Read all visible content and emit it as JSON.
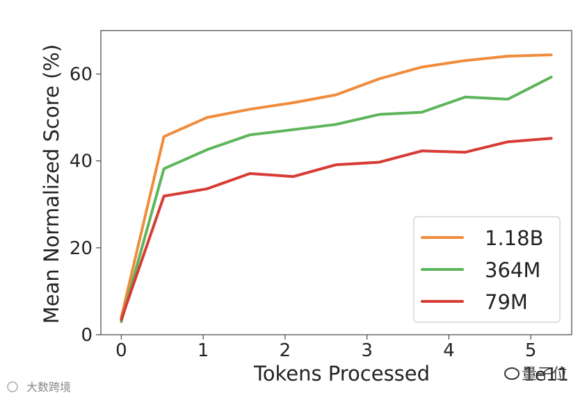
{
  "chart_data": {
    "type": "line",
    "title": "",
    "xlabel": "Tokens Processed",
    "ylabel": "Mean Normalized Score (%)",
    "x_exponent_label": "1e11",
    "xlim": [
      -0.25,
      5.5
    ],
    "ylim": [
      0,
      70
    ],
    "xticks": [
      0,
      1,
      2,
      3,
      4,
      5
    ],
    "yticks": [
      0,
      20,
      40,
      60
    ],
    "grid": false,
    "legend_position": "lower-right",
    "series": [
      {
        "name": "1.18B",
        "color": "#F08C3C",
        "x": [
          0,
          0.52,
          1.05,
          1.57,
          2.1,
          2.62,
          3.15,
          3.67,
          4.2,
          4.72,
          5.25
        ],
        "y": [
          4,
          45.6,
          50,
          51.9,
          53.4,
          55.2,
          58.9,
          61.6,
          63.1,
          64.1,
          64.4
        ]
      },
      {
        "name": "364M",
        "color": "#5DB55A",
        "x": [
          0,
          0.52,
          1.05,
          1.57,
          2.1,
          2.62,
          3.15,
          3.67,
          4.2,
          4.72,
          5.25
        ],
        "y": [
          3,
          38.2,
          42.6,
          46,
          47.2,
          48.4,
          50.7,
          51.2,
          54.7,
          54.2,
          59.3
        ]
      },
      {
        "name": "79M",
        "color": "#D63B35",
        "x": [
          0,
          0.52,
          1.05,
          1.57,
          2.1,
          2.62,
          3.15,
          3.67,
          4.2,
          4.72,
          5.25
        ],
        "y": [
          3.5,
          31.9,
          33.6,
          37.1,
          36.4,
          39.1,
          39.7,
          42.3,
          42,
          44.4,
          45.2
        ]
      }
    ]
  },
  "watermark": {
    "left_text": "大数跨境",
    "right_text": "量子位",
    "icon": "chat-bubble-icon"
  }
}
